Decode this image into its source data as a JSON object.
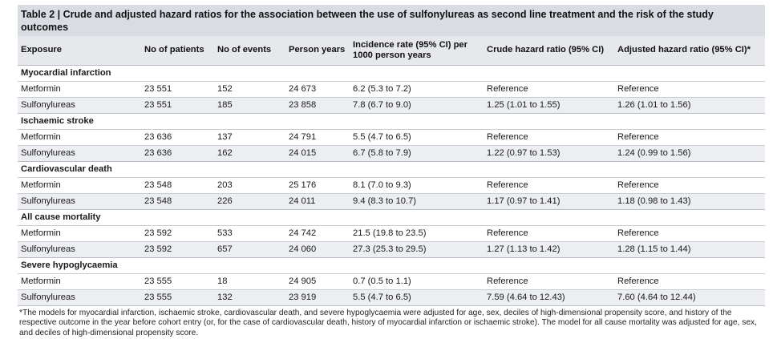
{
  "title": "Table 2 | Crude and adjusted hazard ratios for the association between the use of sulfonylureas as second line treatment and the risk of the study outcomes",
  "headers": [
    "Exposure",
    "No of patients",
    "No of events",
    "Person years",
    "Incidence rate (95% CI) per 1000 person years",
    "Crude hazard ratio (95% CI)",
    "Adjusted hazard ratio (95% CI)*"
  ],
  "groups": [
    {
      "name": "Myocardial infarction",
      "rows": [
        [
          "Metformin",
          "23 551",
          "152",
          "24 673",
          "6.2 (5.3 to 7.2)",
          "Reference",
          "Reference"
        ],
        [
          "Sulfonylureas",
          "23 551",
          "185",
          "23 858",
          "7.8 (6.7 to 9.0)",
          "1.25 (1.01 to 1.55)",
          "1.26 (1.01 to 1.56)"
        ]
      ]
    },
    {
      "name": "Ischaemic stroke",
      "rows": [
        [
          "Metformin",
          "23 636",
          "137",
          "24 791",
          "5.5 (4.7 to 6.5)",
          "Reference",
          "Reference"
        ],
        [
          "Sulfonylureas",
          "23 636",
          "162",
          "24 015",
          "6.7 (5.8 to 7.9)",
          "1.22 (0.97 to 1.53)",
          "1.24 (0.99 to 1.56)"
        ]
      ]
    },
    {
      "name": "Cardiovascular death",
      "rows": [
        [
          "Metformin",
          "23 548",
          "203",
          "25 176",
          "8.1 (7.0 to 9.3)",
          "Reference",
          "Reference"
        ],
        [
          "Sulfonylureas",
          "23 548",
          "226",
          "24 011",
          "9.4 (8.3 to 10.7)",
          "1.17 (0.97 to 1.41)",
          "1.18 (0.98 to 1.43)"
        ]
      ]
    },
    {
      "name": "All cause mortality",
      "rows": [
        [
          "Metformin",
          "23 592",
          "533",
          "24 742",
          "21.5 (19.8 to 23.5)",
          "Reference",
          "Reference"
        ],
        [
          "Sulfonylureas",
          "23 592",
          "657",
          "24 060",
          "27.3 (25.3 to 29.5)",
          "1.27 (1.13 to 1.42)",
          "1.28 (1.15 to 1.44)"
        ]
      ]
    },
    {
      "name": "Severe hypoglycaemia",
      "rows": [
        [
          "Metformin",
          "23 555",
          "18",
          "24 905",
          "0.7 (0.5 to 1.1)",
          "Reference",
          "Reference"
        ],
        [
          "Sulfonylureas",
          "23 555",
          "132",
          "23 919",
          "5.5 (4.7 to 6.5)",
          "7.59 (4.64 to 12.43)",
          "7.60 (4.64 to 12.44)"
        ]
      ]
    }
  ],
  "footnote": "*The models for myocardial infarction, ischaemic stroke, cardiovascular death, and severe hypoglycaemia were adjusted for age, sex, deciles of high-dimensional propensity score, and history of the respective outcome in the year before cohort entry (or, for the case of cardiovascular death, history of myocardial infarction or ischaemic stroke). The model for all cause mortality was adjusted for age, sex, and deciles of high-dimensional propensity score.",
  "colors": {
    "title_bg": "#d9dde3",
    "header_bg": "#e6e8ec",
    "alt_row_bg": "#eceef1"
  }
}
